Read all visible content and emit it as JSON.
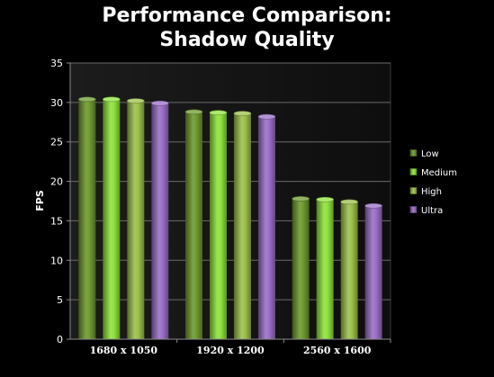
{
  "chart_data": {
    "type": "bar",
    "title_lines": [
      "Performance Comparison:",
      "Shadow Quality"
    ],
    "xlabel": "",
    "ylabel": "FPS",
    "ylim": [
      0,
      35
    ],
    "yticks": [
      0,
      5,
      10,
      15,
      20,
      25,
      30,
      35
    ],
    "grid": true,
    "legend_position": "right",
    "categories": [
      "1680 x 1050",
      "1920 x 1200",
      "2560 x 1600"
    ],
    "series": [
      {
        "name": "Low",
        "color": "#6e9a2e",
        "values": [
          30.4,
          28.8,
          17.8
        ]
      },
      {
        "name": "Medium",
        "color": "#8fe33c",
        "values": [
          30.4,
          28.7,
          17.7
        ]
      },
      {
        "name": "High",
        "color": "#9dc04a",
        "values": [
          30.2,
          28.6,
          17.4
        ]
      },
      {
        "name": "Ultra",
        "color": "#9a6fc6",
        "values": [
          29.9,
          28.2,
          16.9
        ]
      }
    ]
  }
}
